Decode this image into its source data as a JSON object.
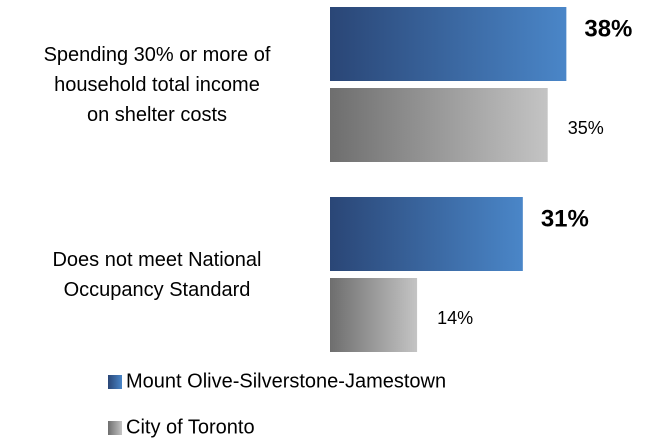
{
  "chart_data": {
    "type": "hbar",
    "categories": [
      "Spending 30% or more of\nhousehold total income\non shelter costs",
      "Does not meet National\nOccupancy Standard"
    ],
    "series": [
      {
        "name": "Mount Olive-Silverstone-Jamestown",
        "color": "#4a86c8",
        "values": [
          38,
          31
        ],
        "value_labels": [
          "38%",
          "31%"
        ]
      },
      {
        "name": "City of Toronto",
        "color": "#c4c4c4",
        "values": [
          35,
          14
        ],
        "value_labels": [
          "35%",
          "14%"
        ]
      }
    ],
    "xlim": [
      0,
      50
    ]
  }
}
